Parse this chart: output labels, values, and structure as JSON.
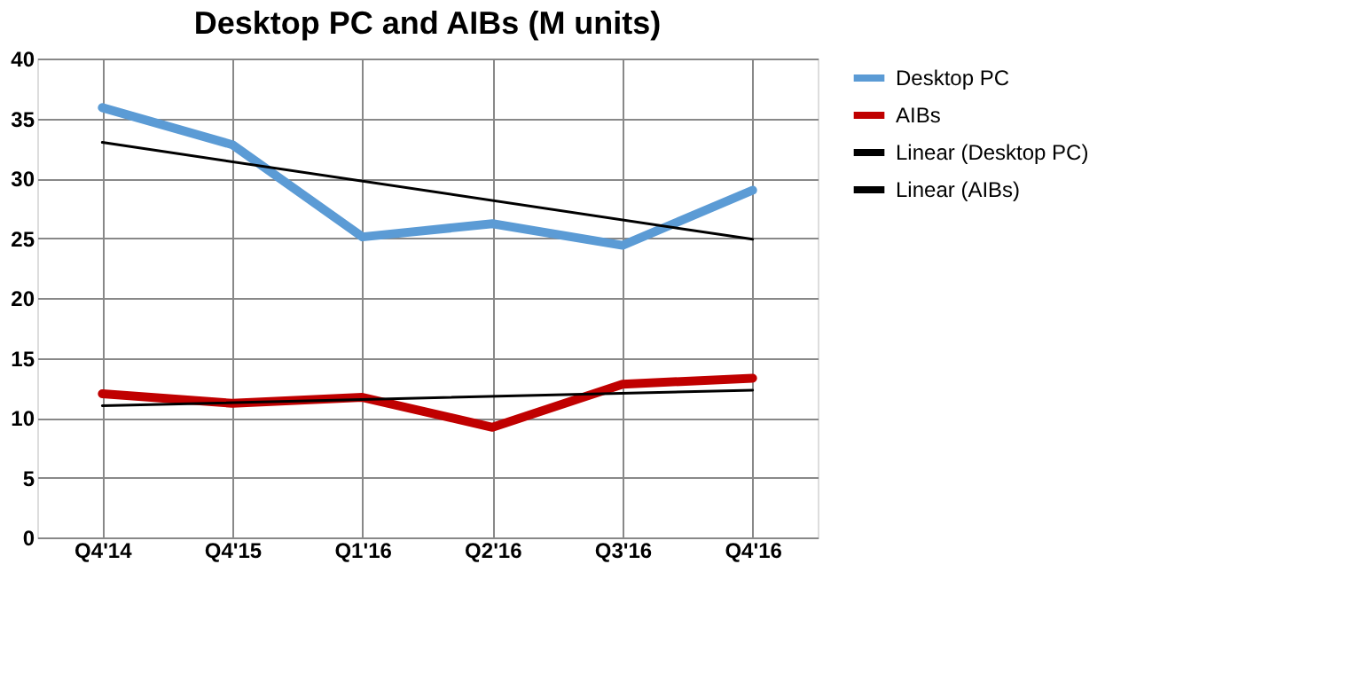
{
  "chart_data": {
    "type": "line",
    "title": "Desktop PC and AIBs (M units)",
    "categories": [
      "Q4'14",
      "Q4'15",
      "Q1'16",
      "Q2'16",
      "Q3'16",
      "Q4'16"
    ],
    "series": [
      {
        "name": "Desktop PC",
        "color": "#5b9bd5",
        "values": [
          35.9,
          32.8,
          25.1,
          26.2,
          24.4,
          29.0
        ]
      },
      {
        "name": "AIBs",
        "color": "#c00000",
        "values": [
          12.0,
          11.2,
          11.7,
          9.2,
          12.8,
          13.3
        ]
      },
      {
        "name": "Linear (Desktop PC)",
        "color": "#000000",
        "x": [
          "Q4'14",
          "Q4'16"
        ],
        "values": [
          33.0,
          24.9
        ]
      },
      {
        "name": "Linear (AIBs)",
        "color": "#000000",
        "x": [
          "Q4'14",
          "Q4'16"
        ],
        "values": [
          11.0,
          12.3
        ]
      }
    ],
    "ylim": [
      0,
      40
    ],
    "yticks": [
      0,
      5,
      10,
      15,
      20,
      25,
      30,
      35,
      40
    ],
    "grid": true,
    "legend": "right",
    "marker": "none",
    "line_style": "solid"
  }
}
